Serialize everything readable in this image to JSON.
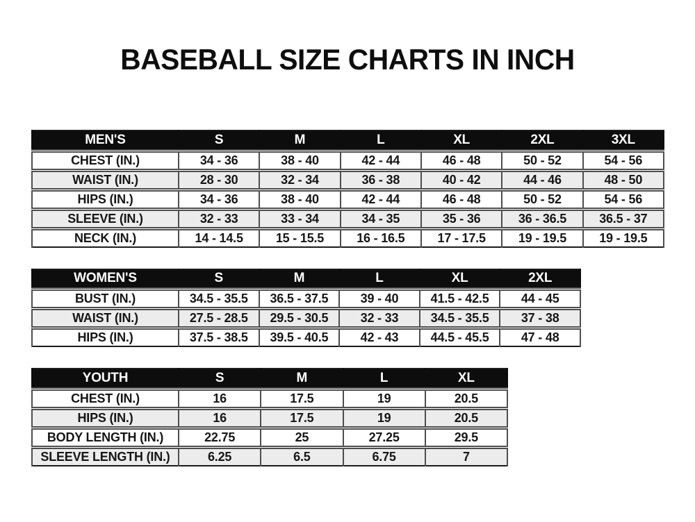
{
  "page": {
    "title": "BASEBALL SIZE CHARTS IN INCH",
    "unit": "INCH"
  },
  "colors": {
    "header_bg": "#0d0d0d",
    "header_text": "#ffffff",
    "row_alt_bg": "#ececec",
    "row_bg": "#ffffff",
    "border": "#4e4e4e",
    "text": "#161616",
    "page_bg": "#ffffff"
  },
  "chart_data": [
    {
      "type": "table",
      "name": "mens-sizes",
      "header": [
        "MEN'S",
        "S",
        "M",
        "L",
        "XL",
        "2XL",
        "3XL"
      ],
      "rows": [
        [
          "CHEST (IN.)",
          "34 - 36",
          "38 - 40",
          "42 - 44",
          "46 - 48",
          "50 - 52",
          "54 - 56"
        ],
        [
          "WAIST (IN.)",
          "28 - 30",
          "32 - 34",
          "36 - 38",
          "40 - 42",
          "44 - 46",
          "48 - 50"
        ],
        [
          "HIPS (IN.)",
          "34 - 36",
          "38 - 40",
          "42 - 44",
          "46 - 48",
          "50 - 52",
          "54 - 56"
        ],
        [
          "SLEEVE (IN.)",
          "32 - 33",
          "33 - 34",
          "34 - 35",
          "35 - 36",
          "36 - 36.5",
          "36.5 - 37"
        ],
        [
          "NECK (IN.)",
          "14 - 14.5",
          "15 - 15.5",
          "16 - 16.5",
          "17 - 17.5",
          "19 - 19.5",
          "19 - 19.5"
        ]
      ]
    },
    {
      "type": "table",
      "name": "womens-sizes",
      "header": [
        "WOMEN'S",
        "S",
        "M",
        "L",
        "XL",
        "2XL"
      ],
      "rows": [
        [
          "BUST (IN.)",
          "34.5 - 35.5",
          "36.5 - 37.5",
          "39 - 40",
          "41.5 - 42.5",
          "44 - 45"
        ],
        [
          "WAIST (IN.)",
          "27.5 - 28.5",
          "29.5 - 30.5",
          "32 - 33",
          "34.5 - 35.5",
          "37 - 38"
        ],
        [
          "HIPS (IN.)",
          "37.5 - 38.5",
          "39.5 - 40.5",
          "42 - 43",
          "44.5 - 45.5",
          "47 - 48"
        ]
      ]
    },
    {
      "type": "table",
      "name": "youth-sizes",
      "header": [
        "YOUTH",
        "S",
        "M",
        "L",
        "XL"
      ],
      "rows": [
        [
          "CHEST (IN.)",
          "16",
          "17.5",
          "19",
          "20.5"
        ],
        [
          "HIPS (IN.)",
          "16",
          "17.5",
          "19",
          "20.5"
        ],
        [
          "BODY LENGTH (IN.)",
          "22.75",
          "25",
          "27.25",
          "29.5"
        ],
        [
          "SLEEVE LENGTH (IN.)",
          "6.25",
          "6.5",
          "6.75",
          "7"
        ]
      ]
    }
  ]
}
